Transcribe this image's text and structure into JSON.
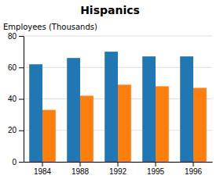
{
  "chart_data": {
    "type": "bar",
    "title": "Hispanics",
    "ylabel": "Employees (Thousands)",
    "categories": [
      "1984",
      "1988",
      "1992",
      "1995",
      "1996"
    ],
    "series": [
      {
        "values": [
          62,
          66,
          70,
          67,
          67
        ]
      },
      {
        "values": [
          33,
          42,
          49,
          48,
          47
        ]
      }
    ],
    "ylim": [
      0,
      80
    ],
    "yticks": [
      0,
      20,
      40,
      60,
      80
    ],
    "grid": true
  }
}
